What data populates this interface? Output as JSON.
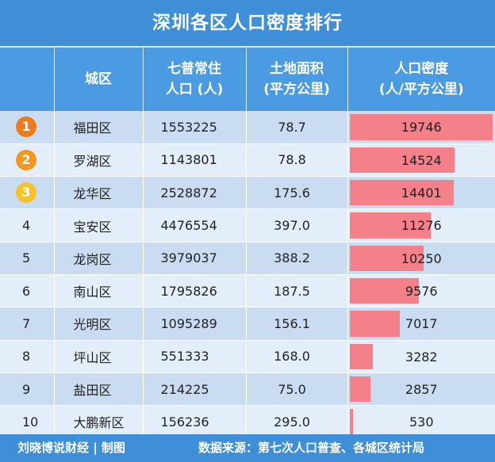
{
  "title": "深圳各区人口密度排行",
  "headers": {
    "rank": "",
    "district": "城区",
    "population": "七普常住\n人口 (人)",
    "area": "土地面积\n(平方公里)",
    "density": "人口密度\n(人/平方公里)"
  },
  "rows": [
    {
      "rank": "1",
      "district": "福田区",
      "population": "1553225",
      "area": "78.7",
      "density": "19746"
    },
    {
      "rank": "2",
      "district": "罗湖区",
      "population": "1143801",
      "area": "78.8",
      "density": "14524"
    },
    {
      "rank": "3",
      "district": "龙华区",
      "population": "2528872",
      "area": "175.6",
      "density": "14401"
    },
    {
      "rank": "4",
      "district": "宝安区",
      "population": "4476554",
      "area": "397.0",
      "density": "11276"
    },
    {
      "rank": "5",
      "district": "龙岗区",
      "population": "3979037",
      "area": "388.2",
      "density": "10250"
    },
    {
      "rank": "6",
      "district": "南山区",
      "population": "1795826",
      "area": "187.5",
      "density": "9576"
    },
    {
      "rank": "7",
      "district": "光明区",
      "population": "1095289",
      "area": "156.1",
      "density": "7017"
    },
    {
      "rank": "8",
      "district": "坪山区",
      "population": "551333",
      "area": "168.0",
      "density": "3282"
    },
    {
      "rank": "9",
      "district": "盐田区",
      "population": "214225",
      "area": "75.0",
      "density": "2857"
    },
    {
      "rank": "10",
      "district": "大鹏新区",
      "population": "156236",
      "area": "295.0",
      "density": "530"
    }
  ],
  "footer": {
    "credit": "刘晓博说财经 | 制图",
    "source": "数据来源：第七次人口普查、各城区统计局"
  },
  "watermark": "刘晓博说财经",
  "colors": {
    "header_bg": "#3e8ed8",
    "bar": "#f4808a",
    "medal_1": "#f07a1a",
    "medal_2": "#f3951f",
    "medal_3": "#f6c22b"
  }
}
